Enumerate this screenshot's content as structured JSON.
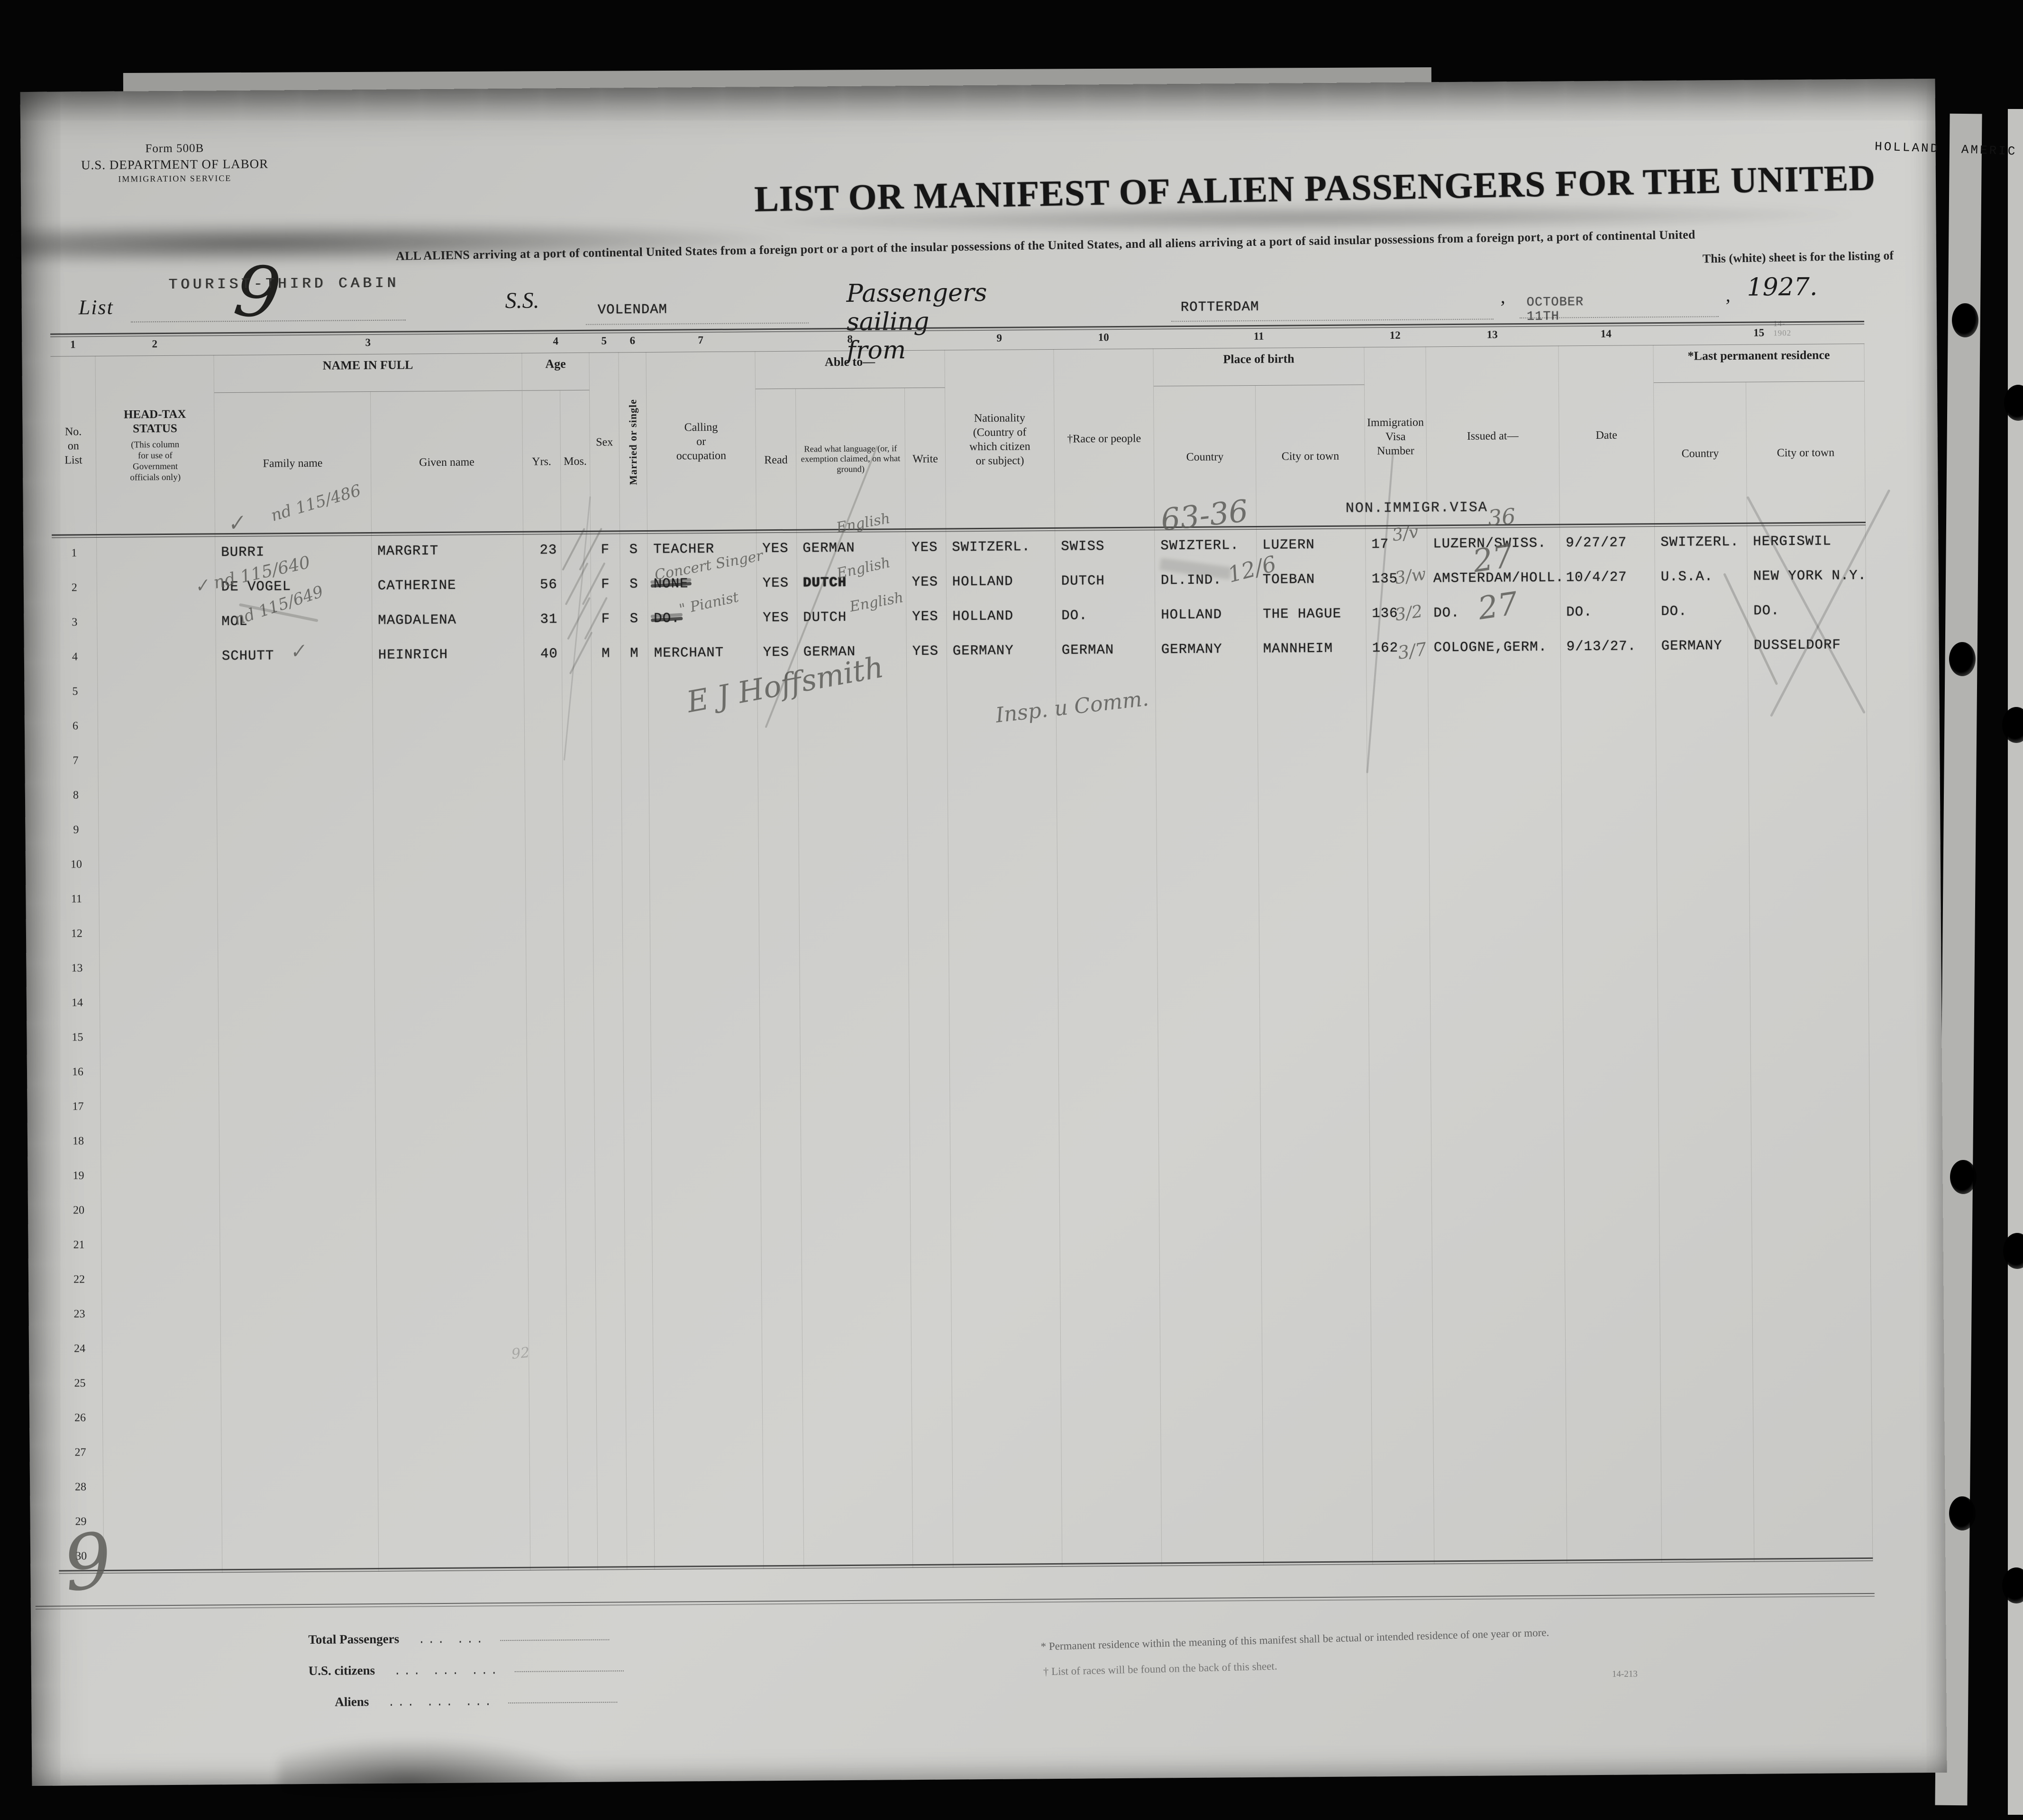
{
  "window": {
    "edge_label": "HOLLAND AMERIC"
  },
  "form_head": {
    "form_no": "Form 500B",
    "department": "U.S. DEPARTMENT OF LABOR",
    "service": "IMMIGRATION SERVICE",
    "list_label": "List",
    "list_number": "9",
    "cabin_stamp": "TOURIST-THIRD CABIN"
  },
  "title": "LIST OR MANIFEST OF ALIEN PASSENGERS FOR THE UNITED",
  "subtitle_line1": "ALL ALIENS arriving at a port of continental United States from a foreign port or a port of the insular possessions of the United States, and all aliens arriving at a port of said insular possessions from a foreign port, a port of continental United",
  "subtitle_line2": "This (white) sheet is for the listing of",
  "sailing": {
    "ss_label": "S.S.",
    "ship": "VOLENDAM",
    "phrase": "Passengers sailing from",
    "port": "ROTTERDAM",
    "comma": ",",
    "date": "OCTOBER 11TH",
    "year": "1927.",
    "small_code": "14-1902"
  },
  "table": {
    "column_numbers": [
      "1",
      "2",
      "3",
      "4",
      "5",
      "6",
      "7",
      "8",
      "9",
      "10",
      "11",
      "12",
      "13",
      "14",
      "15"
    ],
    "headers": {
      "no": "No.\non\nList",
      "headtax_title": "HEAD-TAX\nSTATUS",
      "headtax_note": "(This column\nfor use of\nGovernment\nofficials only)",
      "name_group": "NAME IN FULL",
      "family": "Family name",
      "given": "Given name",
      "age_group": "Age",
      "yrs": "Yrs.",
      "mos": "Mos.",
      "sex": "Sex",
      "married": "Married or single",
      "calling": "Calling\nor\noccupation",
      "able_group": "Able to—",
      "read": "Read",
      "readlang": "Read what language (or, if exemption claimed, on what ground)",
      "write": "Write",
      "nationality": "Nationality\n(Country of\nwhich citizen\nor subject)",
      "race": "†Race or people",
      "birth_group": "Place of birth",
      "bcountry": "Country",
      "bcity": "City or town",
      "visa": "Immigration\nVisa\nNumber",
      "issued": "Issued at—",
      "date": "Date",
      "residence_group": "*Last permanent residence",
      "lprc": "Country",
      "lprcity": "City or town"
    },
    "stamp_nonimmigrant": "NON.IMMIGR.VISA",
    "row_count": 30,
    "rows": [
      [
        "1",
        "",
        "BURRI",
        "MARGRIT",
        "23",
        "",
        "F",
        "S",
        "TEACHER",
        "YES",
        "GERMAN",
        "YES",
        "SWITZERL.",
        "SWISS",
        "SWIZTERL.",
        "LUZERN",
        "17",
        "LUZERN/SWISS.",
        "9/27/27",
        "SWITZERL.",
        "HERGISWIL"
      ],
      [
        "2",
        "",
        "DE VOGEL",
        "CATHERINE",
        "56",
        "",
        "F",
        "S",
        "NONE",
        "YES",
        "DUTCH",
        "YES",
        "HOLLAND",
        "DUTCH",
        "DL.IND.",
        "TOEBAN",
        "135",
        "AMSTERDAM/HOLL.",
        "10/4/27",
        "U.S.A.",
        "NEW YORK N.Y."
      ],
      [
        "3",
        "",
        "MOL",
        "MAGDALENA",
        "31",
        "",
        "F",
        "S",
        "DO.",
        "YES",
        "DUTCH",
        "YES",
        "HOLLAND",
        "DO.",
        "HOLLAND",
        "THE HAGUE",
        "136",
        "DO.",
        "DO.",
        "DO.",
        "DO."
      ],
      [
        "4",
        "",
        "SCHUTT",
        "HEINRICH",
        "40",
        "",
        "M",
        "M",
        "MERCHANT",
        "YES",
        "GERMAN",
        "YES",
        "GERMANY",
        "GERMAN",
        "GERMANY",
        "MANNHEIM",
        "162",
        "COLOGNE,GERM.",
        "9/13/27.",
        "GERMANY",
        "DUSSELDORF"
      ]
    ],
    "row_styles": {
      "1": {
        "calling": "struck",
        "lang": "bold"
      },
      "2": {
        "calling": "struck"
      }
    }
  },
  "handwriting": {
    "check_r1": "✓",
    "ht_r1": "nd 115/486",
    "ht_r2": "✓ nd 115/640",
    "ht_r3": "nd 115/649",
    "check_r4": "✓",
    "english_r1": "English",
    "english_r2": "English",
    "english_r3": "English",
    "occ_r2": "Concert Singer",
    "occ_r3": "\" Pianist",
    "mark_6336": "63-36",
    "mark_126": "12/6",
    "mark_36": "36",
    "mark_27a": "27",
    "mark_27b": "27",
    "visa_r1": "3/v",
    "visa_r2": "3/w",
    "visa_r3": "3/2",
    "visa_r4": "3/7",
    "sig_name": "E J Hoffsmith",
    "sig_title": "Insp. u Comm.",
    "faint_92": "92",
    "margin_9": "9"
  },
  "footer": {
    "totals": [
      {
        "label": "Total Passengers",
        "dots": "...    ..."
      },
      {
        "label": "U.S. citizens",
        "dots": "...    ...    ..."
      },
      {
        "label": "Aliens",
        "dots": "...    ...    ..."
      }
    ],
    "note1": "* Permanent residence within the meaning of this manifest shall be actual or intended residence of one year or more.",
    "note2": "† List of races will be found on the back of this sheet.",
    "form_code": "14-213"
  }
}
